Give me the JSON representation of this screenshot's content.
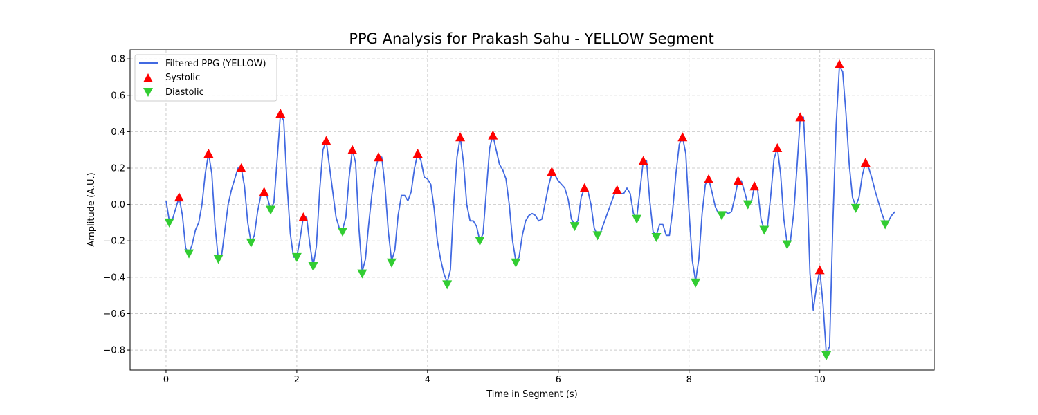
{
  "chart_data": {
    "type": "line",
    "title": "PPG Analysis for Prakash Sahu - YELLOW Segment",
    "xlabel": "Time in Segment (s)",
    "ylabel": "Amplitude (A.U.)",
    "xlim": [
      -0.55,
      11.75
    ],
    "ylim": [
      -0.91,
      0.85
    ],
    "xticks": [
      0,
      2,
      4,
      6,
      8,
      10
    ],
    "yticks": [
      -0.8,
      -0.6,
      -0.4,
      -0.2,
      0.0,
      0.2,
      0.4,
      0.6,
      0.8
    ],
    "xtick_labels": [
      "0",
      "2",
      "4",
      "6",
      "8",
      "10"
    ],
    "ytick_labels": [
      "−0.8",
      "−0.6",
      "−0.4",
      "−0.2",
      "0.0",
      "0.2",
      "0.4",
      "0.6",
      "0.8"
    ],
    "grid": true,
    "legend_position": "upper left",
    "series": [
      {
        "name": "Filtered PPG (YELLOW)",
        "kind": "line",
        "color": "#4169e1",
        "points": [
          [
            0.0,
            0.02
          ],
          [
            0.05,
            -0.09
          ],
          [
            0.1,
            -0.08
          ],
          [
            0.15,
            -0.02
          ],
          [
            0.2,
            0.04
          ],
          [
            0.25,
            -0.06
          ],
          [
            0.3,
            -0.24
          ],
          [
            0.35,
            -0.27
          ],
          [
            0.4,
            -0.22
          ],
          [
            0.45,
            -0.14
          ],
          [
            0.5,
            -0.1
          ],
          [
            0.55,
            0.0
          ],
          [
            0.6,
            0.17
          ],
          [
            0.65,
            0.28
          ],
          [
            0.7,
            0.17
          ],
          [
            0.75,
            -0.12
          ],
          [
            0.8,
            -0.3
          ],
          [
            0.85,
            -0.28
          ],
          [
            0.9,
            -0.14
          ],
          [
            0.95,
            0.0
          ],
          [
            1.0,
            0.08
          ],
          [
            1.05,
            0.14
          ],
          [
            1.1,
            0.2
          ],
          [
            1.15,
            0.2
          ],
          [
            1.2,
            0.1
          ],
          [
            1.25,
            -0.1
          ],
          [
            1.3,
            -0.21
          ],
          [
            1.35,
            -0.17
          ],
          [
            1.4,
            -0.04
          ],
          [
            1.45,
            0.05
          ],
          [
            1.5,
            0.07
          ],
          [
            1.55,
            0.04
          ],
          [
            1.6,
            -0.03
          ],
          [
            1.65,
            0.01
          ],
          [
            1.7,
            0.25
          ],
          [
            1.75,
            0.5
          ],
          [
            1.8,
            0.46
          ],
          [
            1.85,
            0.12
          ],
          [
            1.9,
            -0.16
          ],
          [
            1.95,
            -0.29
          ],
          [
            2.0,
            -0.29
          ],
          [
            2.05,
            -0.19
          ],
          [
            2.1,
            -0.07
          ],
          [
            2.15,
            -0.07
          ],
          [
            2.2,
            -0.22
          ],
          [
            2.25,
            -0.34
          ],
          [
            2.3,
            -0.23
          ],
          [
            2.35,
            0.08
          ],
          [
            2.4,
            0.3
          ],
          [
            2.45,
            0.35
          ],
          [
            2.5,
            0.21
          ],
          [
            2.55,
            0.07
          ],
          [
            2.6,
            -0.07
          ],
          [
            2.65,
            -0.13
          ],
          [
            2.7,
            -0.14
          ],
          [
            2.75,
            -0.07
          ],
          [
            2.8,
            0.15
          ],
          [
            2.85,
            0.3
          ],
          [
            2.9,
            0.23
          ],
          [
            2.95,
            -0.13
          ],
          [
            3.0,
            -0.37
          ],
          [
            3.05,
            -0.3
          ],
          [
            3.1,
            -0.11
          ],
          [
            3.15,
            0.06
          ],
          [
            3.2,
            0.19
          ],
          [
            3.25,
            0.26
          ],
          [
            3.3,
            0.26
          ],
          [
            3.35,
            0.1
          ],
          [
            3.4,
            -0.15
          ],
          [
            3.45,
            -0.31
          ],
          [
            3.5,
            -0.25
          ],
          [
            3.55,
            -0.06
          ],
          [
            3.6,
            0.05
          ],
          [
            3.65,
            0.05
          ],
          [
            3.7,
            0.02
          ],
          [
            3.75,
            0.07
          ],
          [
            3.8,
            0.2
          ],
          [
            3.85,
            0.28
          ],
          [
            3.9,
            0.24
          ],
          [
            3.95,
            0.15
          ],
          [
            4.0,
            0.14
          ],
          [
            4.05,
            0.11
          ],
          [
            4.1,
            -0.02
          ],
          [
            4.15,
            -0.2
          ],
          [
            4.2,
            -0.3
          ],
          [
            4.25,
            -0.38
          ],
          [
            4.3,
            -0.43
          ],
          [
            4.35,
            -0.36
          ],
          [
            4.4,
            0.0
          ],
          [
            4.45,
            0.26
          ],
          [
            4.5,
            0.37
          ],
          [
            4.55,
            0.23
          ],
          [
            4.6,
            0.0
          ],
          [
            4.65,
            -0.09
          ],
          [
            4.7,
            -0.09
          ],
          [
            4.75,
            -0.12
          ],
          [
            4.8,
            -0.2
          ],
          [
            4.85,
            -0.16
          ],
          [
            4.9,
            0.08
          ],
          [
            4.95,
            0.31
          ],
          [
            5.0,
            0.38
          ],
          [
            5.05,
            0.3
          ],
          [
            5.1,
            0.22
          ],
          [
            5.15,
            0.19
          ],
          [
            5.2,
            0.14
          ],
          [
            5.25,
            0.0
          ],
          [
            5.3,
            -0.2
          ],
          [
            5.35,
            -0.31
          ],
          [
            5.4,
            -0.29
          ],
          [
            5.45,
            -0.17
          ],
          [
            5.5,
            -0.09
          ],
          [
            5.55,
            -0.06
          ],
          [
            5.6,
            -0.05
          ],
          [
            5.65,
            -0.06
          ],
          [
            5.7,
            -0.09
          ],
          [
            5.75,
            -0.08
          ],
          [
            5.8,
            0.01
          ],
          [
            5.85,
            0.1
          ],
          [
            5.9,
            0.17
          ],
          [
            5.95,
            0.16
          ],
          [
            6.0,
            0.13
          ],
          [
            6.05,
            0.11
          ],
          [
            6.1,
            0.09
          ],
          [
            6.15,
            0.03
          ],
          [
            6.2,
            -0.08
          ],
          [
            6.25,
            -0.11
          ],
          [
            6.3,
            -0.09
          ],
          [
            6.35,
            0.04
          ],
          [
            6.4,
            0.09
          ],
          [
            6.45,
            0.08
          ],
          [
            6.5,
            0.0
          ],
          [
            6.55,
            -0.13
          ],
          [
            6.6,
            -0.17
          ],
          [
            6.65,
            -0.15
          ],
          [
            6.7,
            -0.1
          ],
          [
            6.75,
            -0.05
          ],
          [
            6.8,
            0.0
          ],
          [
            6.85,
            0.05
          ],
          [
            6.9,
            0.08
          ],
          [
            6.95,
            0.06
          ],
          [
            7.0,
            0.06
          ],
          [
            7.05,
            0.09
          ],
          [
            7.1,
            0.06
          ],
          [
            7.15,
            -0.05
          ],
          [
            7.2,
            -0.07
          ],
          [
            7.25,
            0.08
          ],
          [
            7.3,
            0.24
          ],
          [
            7.35,
            0.24
          ],
          [
            7.4,
            0.02
          ],
          [
            7.45,
            -0.15
          ],
          [
            7.5,
            -0.17
          ],
          [
            7.55,
            -0.11
          ],
          [
            7.6,
            -0.11
          ],
          [
            7.65,
            -0.17
          ],
          [
            7.7,
            -0.17
          ],
          [
            7.75,
            -0.03
          ],
          [
            7.8,
            0.17
          ],
          [
            7.85,
            0.33
          ],
          [
            7.9,
            0.37
          ],
          [
            7.95,
            0.28
          ],
          [
            8.0,
            -0.04
          ],
          [
            8.05,
            -0.31
          ],
          [
            8.1,
            -0.42
          ],
          [
            8.15,
            -0.3
          ],
          [
            8.2,
            -0.05
          ],
          [
            8.25,
            0.11
          ],
          [
            8.3,
            0.14
          ],
          [
            8.35,
            0.07
          ],
          [
            8.4,
            -0.01
          ],
          [
            8.45,
            -0.05
          ],
          [
            8.5,
            -0.06
          ],
          [
            8.55,
            -0.04
          ],
          [
            8.6,
            -0.05
          ],
          [
            8.65,
            -0.04
          ],
          [
            8.7,
            0.04
          ],
          [
            8.75,
            0.13
          ],
          [
            8.8,
            0.13
          ],
          [
            8.85,
            0.07
          ],
          [
            8.9,
            0.0
          ],
          [
            8.95,
            0.01
          ],
          [
            9.0,
            0.1
          ],
          [
            9.05,
            0.08
          ],
          [
            9.1,
            -0.08
          ],
          [
            9.15,
            -0.14
          ],
          [
            9.2,
            -0.12
          ],
          [
            9.25,
            0.05
          ],
          [
            9.3,
            0.25
          ],
          [
            9.35,
            0.31
          ],
          [
            9.4,
            0.17
          ],
          [
            9.45,
            -0.08
          ],
          [
            9.5,
            -0.21
          ],
          [
            9.55,
            -0.2
          ],
          [
            9.6,
            -0.05
          ],
          [
            9.65,
            0.2
          ],
          [
            9.7,
            0.47
          ],
          [
            9.75,
            0.48
          ],
          [
            9.8,
            0.15
          ],
          [
            9.85,
            -0.38
          ],
          [
            9.9,
            -0.58
          ],
          [
            9.95,
            -0.45
          ],
          [
            10.0,
            -0.36
          ],
          [
            10.05,
            -0.55
          ],
          [
            10.1,
            -0.82
          ],
          [
            10.15,
            -0.78
          ],
          [
            10.2,
            -0.1
          ],
          [
            10.25,
            0.44
          ],
          [
            10.3,
            0.76
          ],
          [
            10.35,
            0.73
          ],
          [
            10.4,
            0.5
          ],
          [
            10.45,
            0.22
          ],
          [
            10.5,
            0.04
          ],
          [
            10.55,
            -0.01
          ],
          [
            10.6,
            0.04
          ],
          [
            10.65,
            0.16
          ],
          [
            10.7,
            0.23
          ],
          [
            10.75,
            0.2
          ],
          [
            10.8,
            0.14
          ],
          [
            10.85,
            0.07
          ],
          [
            10.9,
            0.01
          ],
          [
            10.95,
            -0.05
          ],
          [
            11.0,
            -0.1
          ],
          [
            11.05,
            -0.09
          ],
          [
            11.1,
            -0.06
          ],
          [
            11.15,
            -0.04
          ]
        ]
      },
      {
        "name": "Systolic",
        "kind": "marker",
        "marker": "triangle-up",
        "color": "#ff0000",
        "points": [
          [
            0.2,
            0.04
          ],
          [
            0.65,
            0.28
          ],
          [
            1.15,
            0.2
          ],
          [
            1.5,
            0.07
          ],
          [
            1.75,
            0.5
          ],
          [
            2.1,
            -0.07
          ],
          [
            2.45,
            0.35
          ],
          [
            2.85,
            0.3
          ],
          [
            3.25,
            0.26
          ],
          [
            3.85,
            0.28
          ],
          [
            4.5,
            0.37
          ],
          [
            5.0,
            0.38
          ],
          [
            5.9,
            0.18
          ],
          [
            6.4,
            0.09
          ],
          [
            6.9,
            0.08
          ],
          [
            7.3,
            0.24
          ],
          [
            7.9,
            0.37
          ],
          [
            8.3,
            0.14
          ],
          [
            8.75,
            0.13
          ],
          [
            9.0,
            0.1
          ],
          [
            9.35,
            0.31
          ],
          [
            9.7,
            0.48
          ],
          [
            10.0,
            -0.36
          ],
          [
            10.3,
            0.77
          ],
          [
            10.7,
            0.23
          ]
        ]
      },
      {
        "name": "Diastolic",
        "kind": "marker",
        "marker": "triangle-down",
        "color": "#32cd32",
        "points": [
          [
            0.05,
            -0.1
          ],
          [
            0.35,
            -0.27
          ],
          [
            0.8,
            -0.3
          ],
          [
            1.3,
            -0.21
          ],
          [
            1.6,
            -0.03
          ],
          [
            2.0,
            -0.29
          ],
          [
            2.25,
            -0.34
          ],
          [
            2.7,
            -0.15
          ],
          [
            3.0,
            -0.38
          ],
          [
            3.45,
            -0.32
          ],
          [
            4.3,
            -0.44
          ],
          [
            4.8,
            -0.2
          ],
          [
            5.35,
            -0.32
          ],
          [
            6.25,
            -0.12
          ],
          [
            6.6,
            -0.17
          ],
          [
            7.2,
            -0.08
          ],
          [
            7.5,
            -0.18
          ],
          [
            8.1,
            -0.43
          ],
          [
            8.5,
            -0.06
          ],
          [
            8.9,
            0.0
          ],
          [
            9.15,
            -0.14
          ],
          [
            9.5,
            -0.22
          ],
          [
            10.1,
            -0.83
          ],
          [
            10.55,
            -0.02
          ],
          [
            11.0,
            -0.11
          ]
        ]
      }
    ]
  }
}
